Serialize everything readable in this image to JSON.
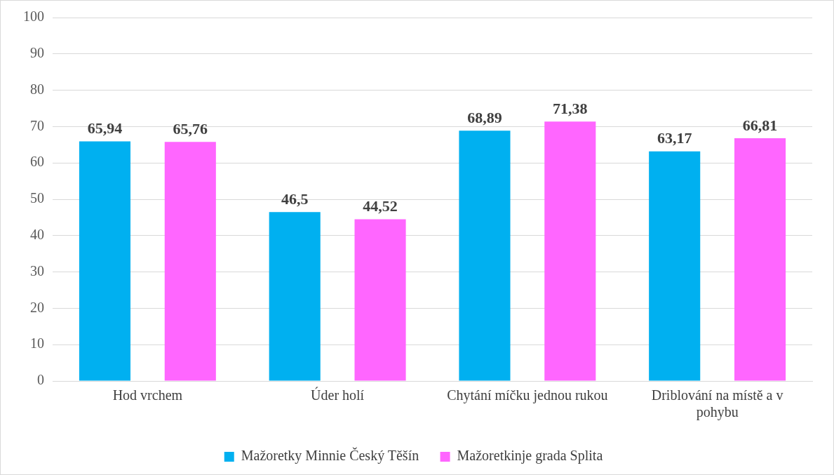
{
  "chart_data": {
    "type": "bar",
    "categories": [
      "Hod vrchem",
      "Úder holí",
      "Chytání míčku jednou rukou",
      "Driblování na místě a v pohybu"
    ],
    "series": [
      {
        "name": "Mažoretky Minnie Český Těšín",
        "color": "#00b0f0",
        "values": [
          65.94,
          46.5,
          68.89,
          63.17
        ],
        "value_labels": [
          "65,94",
          "46,5",
          "68,89",
          "63,17"
        ]
      },
      {
        "name": "Mažoretkinje grada Splita",
        "color": "#ff66ff",
        "values": [
          65.76,
          44.52,
          71.38,
          66.81
        ],
        "value_labels": [
          "65,76",
          "44,52",
          "71,38",
          "66,81"
        ]
      }
    ],
    "ylim": [
      0,
      100
    ],
    "yticks": [
      0,
      10,
      20,
      30,
      40,
      50,
      60,
      70,
      80,
      90,
      100
    ],
    "grid": "y",
    "legend": "bottom"
  }
}
